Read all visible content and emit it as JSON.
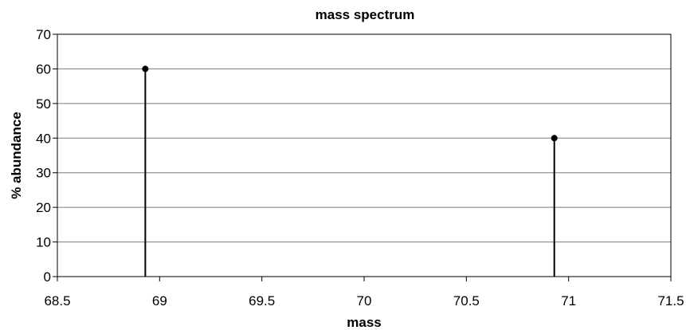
{
  "chart_data": {
    "type": "scatter",
    "title": "mass spectrum",
    "xlabel": "mass",
    "ylabel": "% abundance",
    "xlim": [
      68.5,
      71.5
    ],
    "ylim": [
      0,
      70
    ],
    "x_ticks": [
      "68.5",
      "69",
      "69.5",
      "70",
      "70.5",
      "71",
      "71.5"
    ],
    "y_ticks": [
      "0",
      "10",
      "20",
      "30",
      "40",
      "50",
      "60",
      "70"
    ],
    "grid": "horizontal",
    "markers": "dots with vertical drop lines",
    "series": [
      {
        "x": [
          68.93,
          70.93
        ],
        "values": [
          60,
          40
        ]
      }
    ]
  }
}
